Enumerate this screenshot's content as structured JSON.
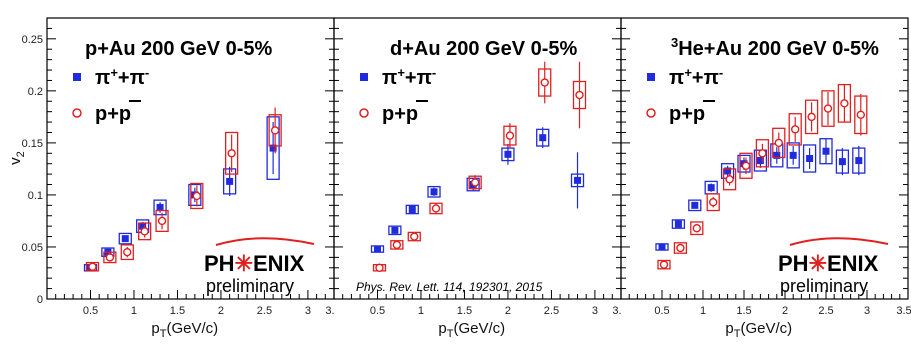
{
  "colors": {
    "pion": "#1f2bdc",
    "proton": "#e0201f",
    "axis": "#000000"
  },
  "chart_data": [
    {
      "type": "scatter",
      "title": "p+Au 200 GeV 0-5%",
      "xlabel": "p_T(GeV/c)",
      "ylabel": "v_2",
      "xlim": [
        0,
        3.3
      ],
      "ylim": [
        0,
        0.27
      ],
      "xticks": [
        "0.5",
        "1",
        "1.5",
        "2",
        "2.5",
        "3",
        "3."
      ],
      "yticks": [
        "0",
        "0.05",
        "0.1",
        "0.15",
        "0.2",
        "0.25"
      ],
      "legend_placement": "top-left",
      "series": [
        {
          "name": "π⁺+π⁻",
          "marker": "filled-square",
          "x": [
            0.5,
            0.7,
            0.9,
            1.1,
            1.3,
            1.7,
            2.1,
            2.6
          ],
          "y": [
            0.03,
            0.045,
            0.058,
            0.07,
            0.088,
            0.1,
            0.113,
            0.145
          ],
          "yerr": [
            0.002,
            0.003,
            0.003,
            0.004,
            0.005,
            0.007,
            0.014,
            0.025
          ],
          "syserr": [
            0.003,
            0.004,
            0.005,
            0.006,
            0.007,
            0.01,
            0.012,
            0.03
          ]
        },
        {
          "name": "p+p̄",
          "marker": "open-circle",
          "x": [
            0.5,
            0.7,
            0.9,
            1.1,
            1.3,
            1.7,
            2.1,
            2.6
          ],
          "y": [
            0.031,
            0.04,
            0.045,
            0.065,
            0.075,
            0.099,
            0.14,
            0.162
          ],
          "yerr": [
            0.003,
            0.004,
            0.005,
            0.006,
            0.008,
            0.01,
            0.018,
            0.022
          ],
          "syserr": [
            0.004,
            0.005,
            0.007,
            0.008,
            0.01,
            0.012,
            0.02,
            0.015
          ]
        }
      ],
      "annotation": {
        "logo": "PH✳ENIX",
        "subtitle": "preliminary"
      }
    },
    {
      "type": "scatter",
      "title": "d+Au 200 GeV 0-5%",
      "xlabel": "p_T(GeV/c)",
      "ylabel": "",
      "xlim": [
        0,
        3.3
      ],
      "ylim": [
        0,
        0.27
      ],
      "xticks": [
        "0.5",
        "1",
        "1.5",
        "2",
        "2.5",
        "3",
        "3."
      ],
      "legend_placement": "top-left",
      "series": [
        {
          "name": "π⁺+π⁻",
          "marker": "filled-square",
          "x": [
            0.5,
            0.7,
            0.9,
            1.15,
            1.6,
            2.0,
            2.4,
            2.8
          ],
          "y": [
            0.048,
            0.066,
            0.086,
            0.103,
            0.11,
            0.139,
            0.155,
            0.114
          ],
          "yerr": [
            0.002,
            0.003,
            0.003,
            0.004,
            0.006,
            0.01,
            0.01,
            0.027
          ],
          "syserr": [
            0.003,
            0.004,
            0.004,
            0.005,
            0.006,
            0.006,
            0.008,
            0.006
          ]
        },
        {
          "name": "p+p̄",
          "marker": "open-circle",
          "x": [
            0.5,
            0.7,
            0.9,
            1.15,
            1.6,
            2.0,
            2.4,
            2.8
          ],
          "y": [
            0.03,
            0.052,
            0.06,
            0.087,
            0.112,
            0.157,
            0.208,
            0.196
          ],
          "yerr": [
            0.004,
            0.004,
            0.004,
            0.005,
            0.007,
            0.012,
            0.02,
            0.032
          ],
          "syserr": [
            0.003,
            0.004,
            0.004,
            0.005,
            0.006,
            0.009,
            0.013,
            0.013
          ]
        }
      ],
      "annotation": {
        "citation": "Phys. Rev. Lett. 114, 192301, 2015"
      }
    },
    {
      "type": "scatter",
      "title_super": "3",
      "title": "He+Au 200 GeV 0-5%",
      "xlabel": "p_T(GeV/c)",
      "ylabel": "",
      "xlim": [
        0,
        3.5
      ],
      "ylim": [
        0,
        0.27
      ],
      "xticks": [
        "0.5",
        "1",
        "1.5",
        "2",
        "2.5",
        "3",
        "3.5"
      ],
      "legend_placement": "top-left",
      "series": [
        {
          "name": "π⁺+π⁻",
          "marker": "filled-square",
          "x": [
            0.5,
            0.7,
            0.9,
            1.1,
            1.3,
            1.5,
            1.7,
            1.9,
            2.1,
            2.3,
            2.5,
            2.7,
            2.9
          ],
          "y": [
            0.05,
            0.072,
            0.09,
            0.107,
            0.123,
            0.13,
            0.133,
            0.138,
            0.138,
            0.135,
            0.142,
            0.132,
            0.133
          ],
          "yerr": [
            0.002,
            0.003,
            0.003,
            0.004,
            0.005,
            0.006,
            0.007,
            0.008,
            0.009,
            0.01,
            0.012,
            0.013,
            0.014
          ],
          "syserr": [
            0.003,
            0.004,
            0.005,
            0.006,
            0.007,
            0.008,
            0.01,
            0.011,
            0.012,
            0.013,
            0.012,
            0.011,
            0.012
          ]
        },
        {
          "name": "p+p̄",
          "marker": "open-circle",
          "x": [
            0.5,
            0.7,
            0.9,
            1.1,
            1.3,
            1.5,
            1.7,
            1.9,
            2.1,
            2.3,
            2.5,
            2.7,
            2.9
          ],
          "y": [
            0.033,
            0.049,
            0.068,
            0.093,
            0.115,
            0.128,
            0.14,
            0.15,
            0.163,
            0.175,
            0.183,
            0.188,
            0.177
          ],
          "yerr": [
            0.002,
            0.003,
            0.004,
            0.005,
            0.006,
            0.008,
            0.009,
            0.01,
            0.012,
            0.014,
            0.016,
            0.018,
            0.02
          ],
          "syserr": [
            0.004,
            0.005,
            0.006,
            0.008,
            0.01,
            0.012,
            0.013,
            0.014,
            0.015,
            0.016,
            0.017,
            0.018,
            0.018
          ]
        }
      ],
      "annotation": {
        "logo": "PH✳ENIX",
        "subtitle": "preliminary"
      }
    }
  ]
}
